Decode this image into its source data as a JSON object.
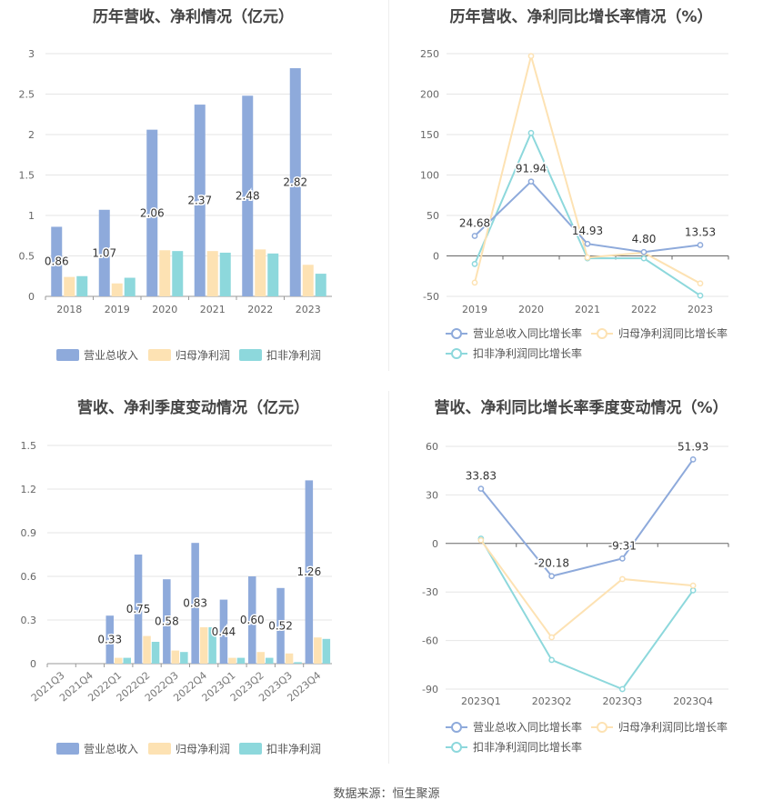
{
  "source": "数据来源：恒生聚源",
  "colors": {
    "revenue": "#8eaadb",
    "net_profit": "#fde2b3",
    "deducted_profit": "#8dd8dc",
    "revenue_line": "#8eaadb",
    "net_profit_line": "#fde2b3",
    "deducted_profit_line": "#8dd8dc"
  },
  "chart_data": [
    {
      "type": "bar",
      "title": "历年营收、净利情况（亿元）",
      "categories": [
        "2018",
        "2019",
        "2020",
        "2021",
        "2022",
        "2023"
      ],
      "ylim": [
        0,
        3
      ],
      "yticks": [
        "0",
        "0.5",
        "1",
        "1.5",
        "2",
        "2.5",
        "3"
      ],
      "grid": true,
      "legend_position": "bottom",
      "series": [
        {
          "name": "营业总收入",
          "values": [
            0.86,
            1.07,
            2.06,
            2.37,
            2.48,
            2.82
          ],
          "labels": [
            "0.86",
            "1.07",
            "2.06",
            "2.37",
            "2.48",
            "2.82"
          ]
        },
        {
          "name": "归母净利润",
          "values": [
            0.24,
            0.16,
            0.57,
            0.56,
            0.58,
            0.39
          ]
        },
        {
          "name": "扣非净利润",
          "values": [
            0.25,
            0.23,
            0.56,
            0.54,
            0.53,
            0.28
          ]
        }
      ]
    },
    {
      "type": "line",
      "title": "历年营收、净利同比增长率情况（%）",
      "categories": [
        "2019",
        "2020",
        "2021",
        "2022",
        "2023"
      ],
      "ylim": [
        -50,
        250
      ],
      "yticks": [
        "-50",
        "0",
        "50",
        "100",
        "150",
        "200",
        "250"
      ],
      "grid": true,
      "legend_position": "bottom",
      "series": [
        {
          "name": "营业总收入同比增长率",
          "values": [
            24.68,
            91.94,
            14.93,
            4.8,
            13.53
          ],
          "labels": [
            "24.68",
            "91.94",
            "14.93",
            "4.80",
            "13.53"
          ]
        },
        {
          "name": "归母净利润同比增长率",
          "values": [
            -33,
            247,
            -2,
            4,
            -34
          ]
        },
        {
          "name": "扣非净利润同比增长率",
          "values": [
            -10,
            152,
            -3,
            -3,
            -49
          ]
        }
      ]
    },
    {
      "type": "bar",
      "title": "营收、净利季度变动情况（亿元）",
      "categories": [
        "2021Q3",
        "2021Q4",
        "2022Q1",
        "2022Q2",
        "2022Q3",
        "2022Q4",
        "2023Q1",
        "2023Q2",
        "2023Q3",
        "2023Q4"
      ],
      "ylim": [
        0,
        1.5
      ],
      "yticks": [
        "0",
        "0.3",
        "0.6",
        "0.9",
        "1.2",
        "1.5"
      ],
      "grid": true,
      "legend_position": "bottom",
      "series": [
        {
          "name": "营业总收入",
          "values": [
            0,
            0,
            0.33,
            0.75,
            0.58,
            0.83,
            0.44,
            0.6,
            0.52,
            1.26
          ],
          "labels": [
            "",
            "",
            "0.33",
            "0.75",
            "0.58",
            "0.83",
            "0.44",
            "0.60",
            "0.52",
            "1.26"
          ]
        },
        {
          "name": "归母净利润",
          "values": [
            0,
            0,
            0.04,
            0.19,
            0.09,
            0.25,
            0.04,
            0.08,
            0.07,
            0.18
          ]
        },
        {
          "name": "扣非净利润",
          "values": [
            0,
            0,
            0.04,
            0.15,
            0.08,
            0.25,
            0.04,
            0.04,
            0.01,
            0.17
          ]
        }
      ]
    },
    {
      "type": "line",
      "title": "营收、净利同比增长率季度变动情况（%）",
      "categories": [
        "2023Q1",
        "2023Q2",
        "2023Q3",
        "2023Q4"
      ],
      "ylim": [
        -90,
        60
      ],
      "yticks": [
        "-90",
        "-60",
        "-30",
        "0",
        "30",
        "60"
      ],
      "grid": true,
      "legend_position": "bottom",
      "series": [
        {
          "name": "营业总收入同比增长率",
          "values": [
            33.83,
            -20.18,
            -9.31,
            51.93
          ],
          "labels": [
            "33.83",
            "-20.18",
            "-9.31",
            "51.93"
          ]
        },
        {
          "name": "归母净利润同比增长率",
          "values": [
            2,
            -58,
            -22,
            -26
          ]
        },
        {
          "name": "扣非净利润同比增长率",
          "values": [
            3,
            -72,
            -90,
            -29
          ]
        }
      ]
    }
  ]
}
